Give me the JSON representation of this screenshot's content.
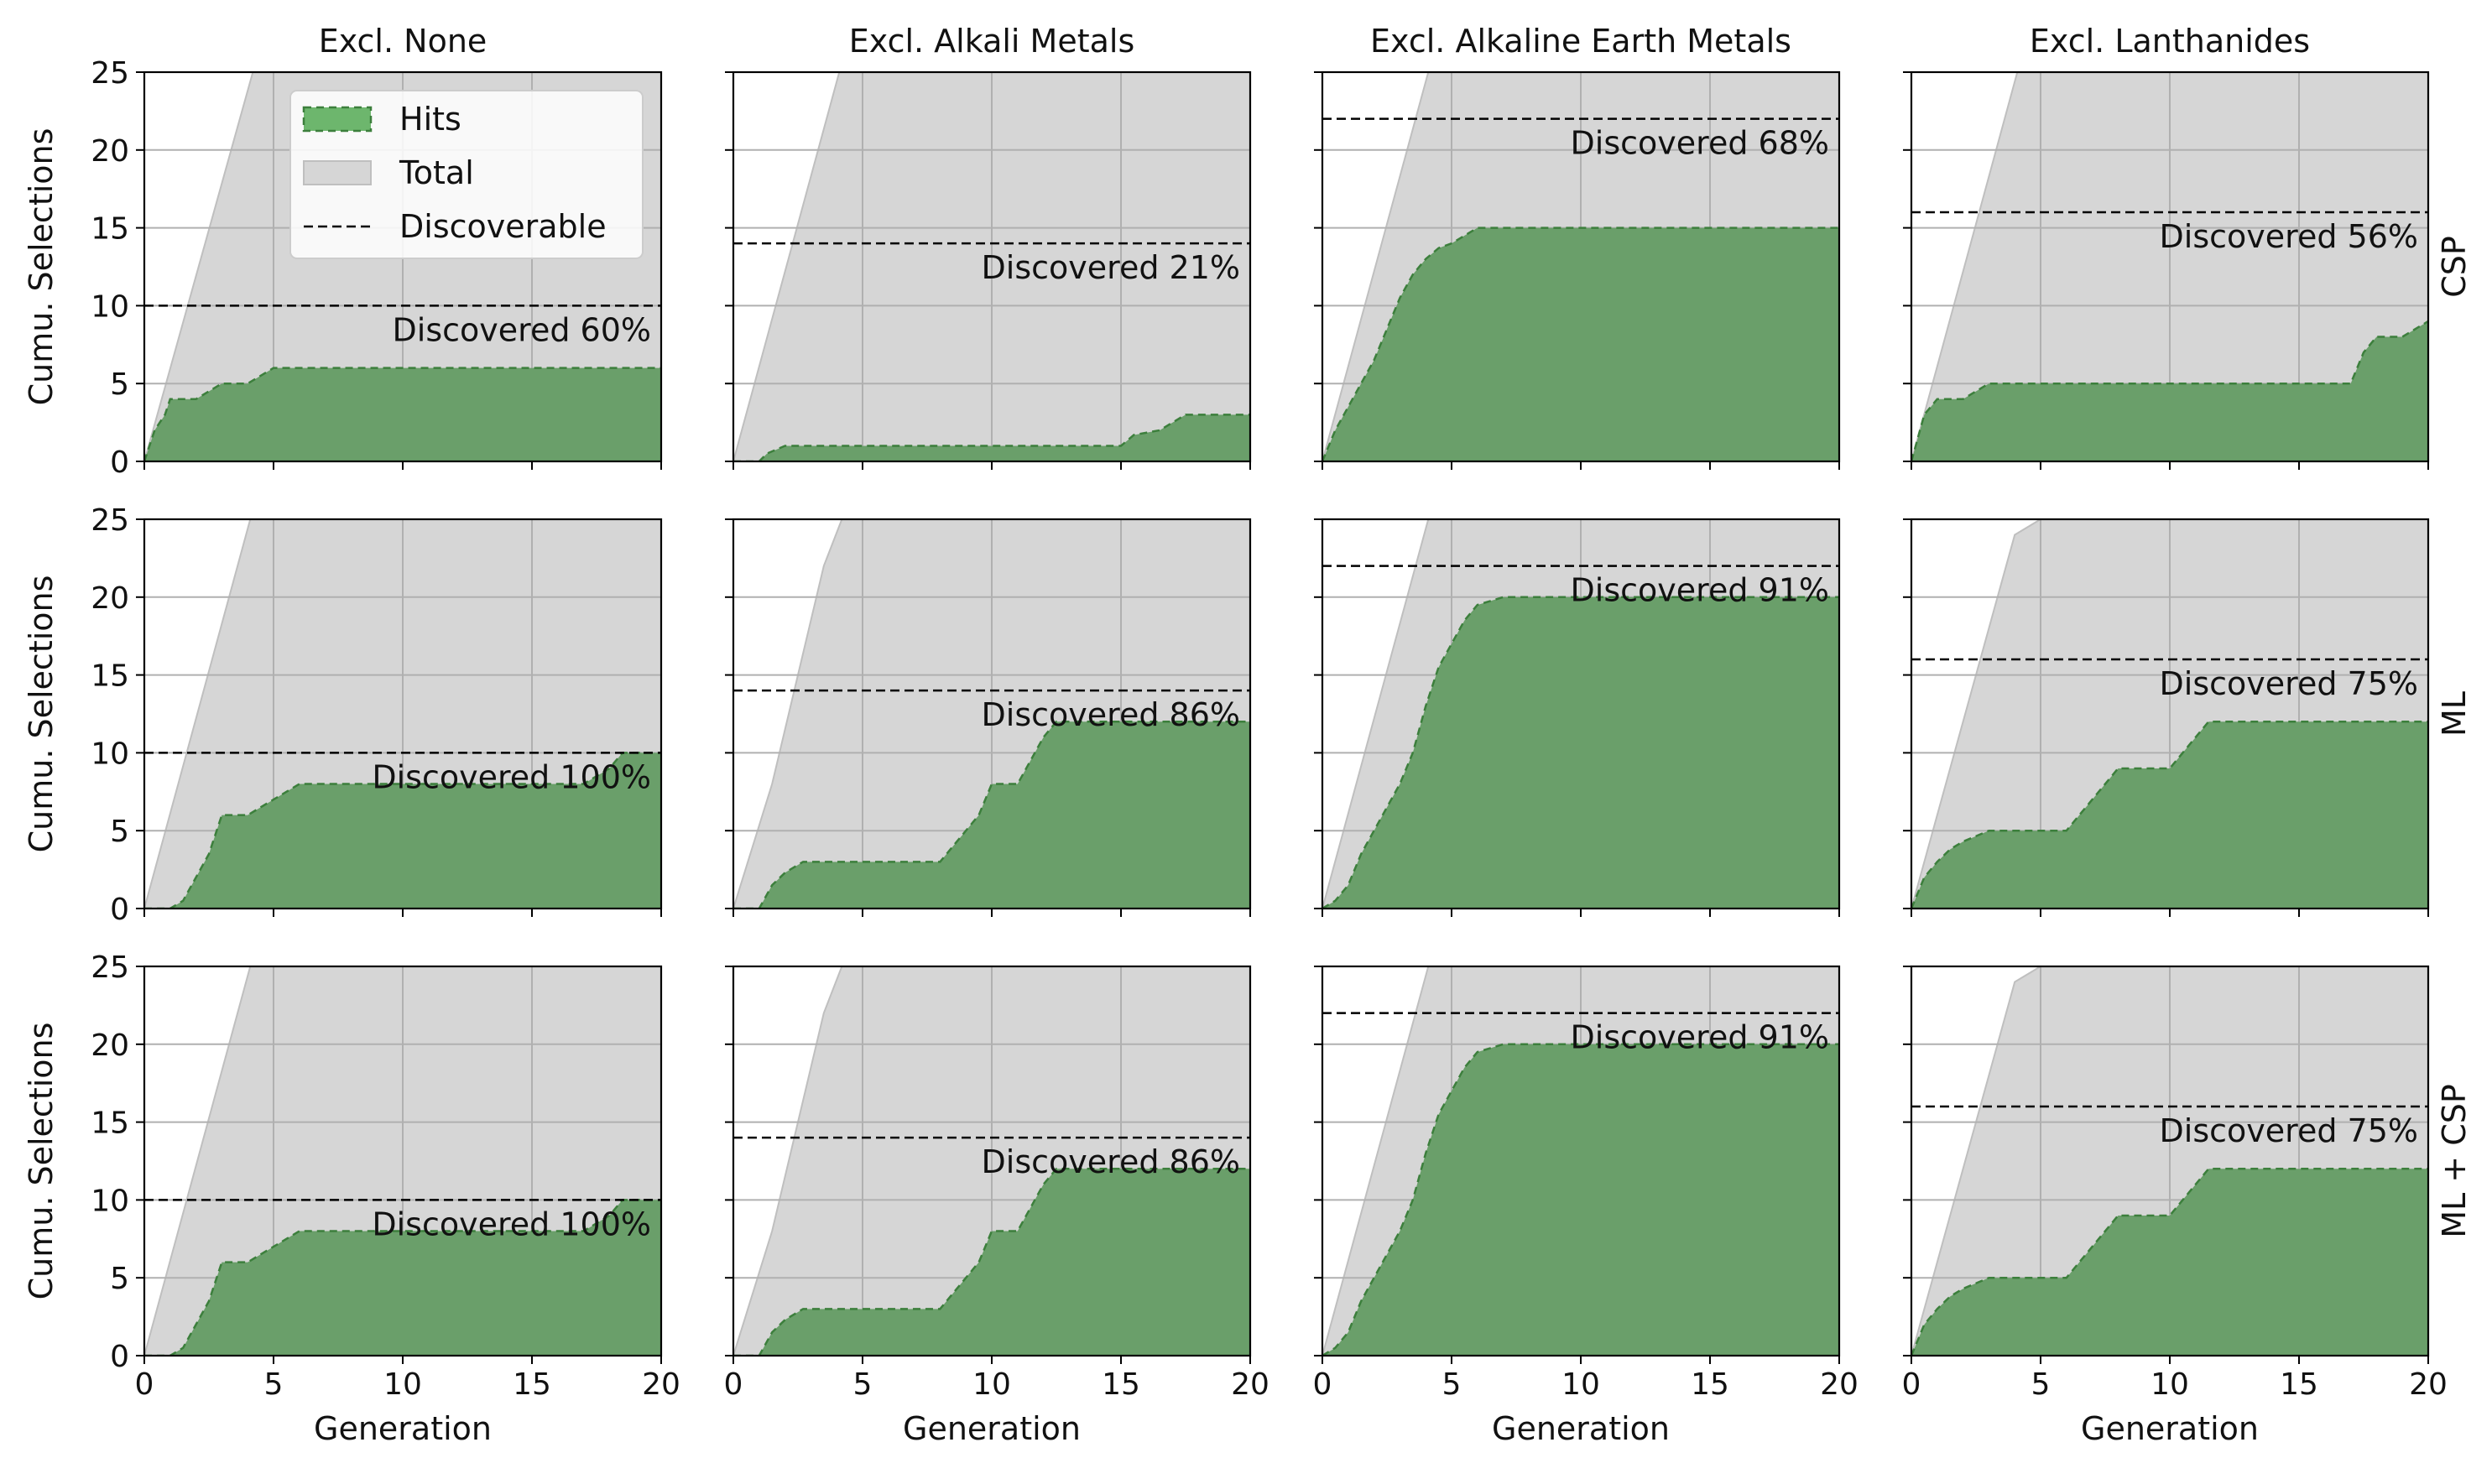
{
  "chart_data": {
    "type": "area",
    "layout": "grid-3x4",
    "columns": [
      "Excl. None",
      "Excl. Alkali Metals",
      "Excl. Alkaline Earth Metals",
      "Excl. Lanthanides"
    ],
    "rows": [
      "CSP",
      "ML",
      "ML + CSP"
    ],
    "xlabel": "Generation",
    "ylabel": "Cumu. Selections",
    "xlim": [
      0,
      20
    ],
    "ylim": [
      0,
      25
    ],
    "xticks": [
      0,
      5,
      10,
      15,
      20
    ],
    "yticks": [
      0,
      5,
      10,
      15,
      20,
      25
    ],
    "grid": true,
    "legend": {
      "placement": "upper-center of first panel",
      "entries": [
        "Hits",
        "Total",
        "Discoverable"
      ]
    },
    "colors": {
      "hits_fill": "#6a9f6a",
      "hits_edge": "#3c7f3c",
      "legend_hits_fill": "#6db66d",
      "total_fill": "#d6d6d6",
      "total_edge": "#bfbfbf",
      "grid": "#b0b0b0",
      "discoverable": "#000000"
    },
    "panels": [
      {
        "row": "CSP",
        "column": "Excl. None",
        "discoverable": 10,
        "label": "Discovered 60%",
        "total": [
          [
            0,
            0
          ],
          [
            4.2,
            25
          ],
          [
            20,
            25
          ]
        ],
        "hits": [
          [
            0,
            0
          ],
          [
            0.4,
            2
          ],
          [
            0.8,
            3
          ],
          [
            1,
            4
          ],
          [
            2,
            4
          ],
          [
            2.5,
            4.5
          ],
          [
            3,
            5
          ],
          [
            4,
            5
          ],
          [
            5,
            6
          ],
          [
            20,
            6
          ]
        ]
      },
      {
        "row": "CSP",
        "column": "Excl. Alkali Metals",
        "discoverable": 14,
        "label": "Discovered 21%",
        "total": [
          [
            0,
            0
          ],
          [
            4.1,
            25
          ],
          [
            20,
            25
          ]
        ],
        "hits": [
          [
            0,
            0
          ],
          [
            1,
            0
          ],
          [
            1.3,
            0.5
          ],
          [
            2,
            1
          ],
          [
            15,
            1
          ],
          [
            15.5,
            1.7
          ],
          [
            16.5,
            2
          ],
          [
            17.5,
            3
          ],
          [
            20,
            3
          ]
        ]
      },
      {
        "row": "CSP",
        "column": "Excl. Alkaline Earth Metals",
        "discoverable": 22,
        "label": "Discovered 68%",
        "total": [
          [
            0,
            0
          ],
          [
            4.1,
            25
          ],
          [
            20,
            25
          ]
        ],
        "hits": [
          [
            0,
            0
          ],
          [
            0.5,
            2
          ],
          [
            1,
            3.5
          ],
          [
            1.5,
            5
          ],
          [
            2,
            6.5
          ],
          [
            2.5,
            8.5
          ],
          [
            3,
            10.5
          ],
          [
            3.5,
            12
          ],
          [
            4,
            13
          ],
          [
            4.5,
            13.7
          ],
          [
            5,
            14
          ],
          [
            5.5,
            14.5
          ],
          [
            6,
            15
          ],
          [
            20,
            15
          ]
        ]
      },
      {
        "row": "CSP",
        "column": "Excl. Lanthanides",
        "discoverable": 16,
        "label": "Discovered 56%",
        "total": [
          [
            0,
            0
          ],
          [
            4.1,
            25
          ],
          [
            20,
            25
          ]
        ],
        "hits": [
          [
            0,
            0
          ],
          [
            0.5,
            3
          ],
          [
            1,
            4
          ],
          [
            2,
            4
          ],
          [
            2.5,
            4.5
          ],
          [
            3,
            5
          ],
          [
            17,
            5
          ],
          [
            17.5,
            7
          ],
          [
            18,
            8
          ],
          [
            19,
            8
          ],
          [
            20,
            9
          ]
        ]
      },
      {
        "row": "ML",
        "column": "Excl. None",
        "discoverable": 10,
        "label": "Discovered 100%",
        "total": [
          [
            0,
            0
          ],
          [
            4.1,
            25
          ],
          [
            20,
            25
          ]
        ],
        "hits": [
          [
            0,
            0
          ],
          [
            1,
            0
          ],
          [
            1.5,
            0.5
          ],
          [
            2,
            2
          ],
          [
            2.5,
            3.5
          ],
          [
            3,
            6
          ],
          [
            4,
            6
          ],
          [
            4.5,
            6.5
          ],
          [
            5,
            7
          ],
          [
            5.5,
            7.5
          ],
          [
            6,
            8
          ],
          [
            17,
            8
          ],
          [
            18,
            9
          ],
          [
            18.5,
            10
          ],
          [
            20,
            10
          ]
        ]
      },
      {
        "row": "ML",
        "column": "Excl. Alkali Metals",
        "discoverable": 14,
        "label": "Discovered 86%",
        "total": [
          [
            0,
            0
          ],
          [
            1.5,
            8
          ],
          [
            2.5,
            15
          ],
          [
            3.5,
            22
          ],
          [
            4.2,
            25
          ],
          [
            20,
            25
          ]
        ],
        "hits": [
          [
            0,
            0
          ],
          [
            1,
            0
          ],
          [
            1.5,
            1.5
          ],
          [
            2,
            2.3
          ],
          [
            2.7,
            3
          ],
          [
            8,
            3
          ],
          [
            8.5,
            4
          ],
          [
            9,
            5
          ],
          [
            9.5,
            6
          ],
          [
            10,
            8
          ],
          [
            11,
            8
          ],
          [
            11.5,
            9.5
          ],
          [
            12,
            11
          ],
          [
            12.5,
            12
          ],
          [
            20,
            12
          ]
        ]
      },
      {
        "row": "ML",
        "column": "Excl. Alkaline Earth Metals",
        "discoverable": 22,
        "label": "Discovered 91%",
        "total": [
          [
            0,
            0
          ],
          [
            4.1,
            25
          ],
          [
            20,
            25
          ]
        ],
        "hits": [
          [
            0,
            0
          ],
          [
            0.5,
            0.5
          ],
          [
            1,
            1.5
          ],
          [
            1.5,
            3.5
          ],
          [
            2,
            5
          ],
          [
            2.5,
            6.5
          ],
          [
            3,
            8
          ],
          [
            3.5,
            10
          ],
          [
            4,
            13
          ],
          [
            4.5,
            15.5
          ],
          [
            5,
            17
          ],
          [
            5.5,
            18.5
          ],
          [
            6,
            19.5
          ],
          [
            7,
            20
          ],
          [
            20,
            20
          ]
        ]
      },
      {
        "row": "ML",
        "column": "Excl. Lanthanides",
        "discoverable": 16,
        "label": "Discovered 75%",
        "total": [
          [
            0,
            0
          ],
          [
            4,
            24
          ],
          [
            5,
            25
          ],
          [
            20,
            25
          ]
        ],
        "hits": [
          [
            0,
            0
          ],
          [
            0.5,
            2
          ],
          [
            1,
            3
          ],
          [
            1.5,
            3.8
          ],
          [
            2,
            4.3
          ],
          [
            3,
            5
          ],
          [
            6,
            5
          ],
          [
            6.5,
            6
          ],
          [
            7,
            7
          ],
          [
            7.5,
            8
          ],
          [
            8,
            9
          ],
          [
            10,
            9
          ],
          [
            10.5,
            10
          ],
          [
            11,
            11
          ],
          [
            11.5,
            12
          ],
          [
            20,
            12
          ]
        ]
      },
      {
        "row": "ML + CSP",
        "column": "Excl. None",
        "discoverable": 10,
        "label": "Discovered 100%",
        "total": [
          [
            0,
            0
          ],
          [
            4.1,
            25
          ],
          [
            20,
            25
          ]
        ],
        "hits": [
          [
            0,
            0
          ],
          [
            1,
            0
          ],
          [
            1.5,
            0.5
          ],
          [
            2,
            2
          ],
          [
            2.5,
            3.5
          ],
          [
            3,
            6
          ],
          [
            4,
            6
          ],
          [
            4.5,
            6.5
          ],
          [
            5,
            7
          ],
          [
            5.5,
            7.5
          ],
          [
            6,
            8
          ],
          [
            17,
            8
          ],
          [
            18,
            9
          ],
          [
            18.5,
            10
          ],
          [
            20,
            10
          ]
        ]
      },
      {
        "row": "ML + CSP",
        "column": "Excl. Alkali Metals",
        "discoverable": 14,
        "label": "Discovered 86%",
        "total": [
          [
            0,
            0
          ],
          [
            1.5,
            8
          ],
          [
            2.5,
            15
          ],
          [
            3.5,
            22
          ],
          [
            4.2,
            25
          ],
          [
            20,
            25
          ]
        ],
        "hits": [
          [
            0,
            0
          ],
          [
            1,
            0
          ],
          [
            1.5,
            1.5
          ],
          [
            2,
            2.3
          ],
          [
            2.7,
            3
          ],
          [
            8,
            3
          ],
          [
            8.5,
            4
          ],
          [
            9,
            5
          ],
          [
            9.5,
            6
          ],
          [
            10,
            8
          ],
          [
            11,
            8
          ],
          [
            11.5,
            9.5
          ],
          [
            12,
            11
          ],
          [
            12.5,
            12
          ],
          [
            20,
            12
          ]
        ]
      },
      {
        "row": "ML + CSP",
        "column": "Excl. Alkaline Earth Metals",
        "discoverable": 22,
        "label": "Discovered 91%",
        "total": [
          [
            0,
            0
          ],
          [
            4.1,
            25
          ],
          [
            20,
            25
          ]
        ],
        "hits": [
          [
            0,
            0
          ],
          [
            0.5,
            0.5
          ],
          [
            1,
            1.5
          ],
          [
            1.5,
            3.5
          ],
          [
            2,
            5
          ],
          [
            2.5,
            6.5
          ],
          [
            3,
            8
          ],
          [
            3.5,
            10
          ],
          [
            4,
            13
          ],
          [
            4.5,
            15.5
          ],
          [
            5,
            17
          ],
          [
            5.5,
            18.5
          ],
          [
            6,
            19.5
          ],
          [
            7,
            20
          ],
          [
            20,
            20
          ]
        ]
      },
      {
        "row": "ML + CSP",
        "column": "Excl. Lanthanides",
        "discoverable": 16,
        "label": "Discovered 75%",
        "total": [
          [
            0,
            0
          ],
          [
            4,
            24
          ],
          [
            5,
            25
          ],
          [
            20,
            25
          ]
        ],
        "hits": [
          [
            0,
            0
          ],
          [
            0.5,
            2
          ],
          [
            1,
            3
          ],
          [
            1.5,
            3.8
          ],
          [
            2,
            4.3
          ],
          [
            3,
            5
          ],
          [
            6,
            5
          ],
          [
            6.5,
            6
          ],
          [
            7,
            7
          ],
          [
            7.5,
            8
          ],
          [
            8,
            9
          ],
          [
            10,
            9
          ],
          [
            10.5,
            10
          ],
          [
            11,
            11
          ],
          [
            11.5,
            12
          ],
          [
            20,
            12
          ]
        ]
      }
    ]
  }
}
